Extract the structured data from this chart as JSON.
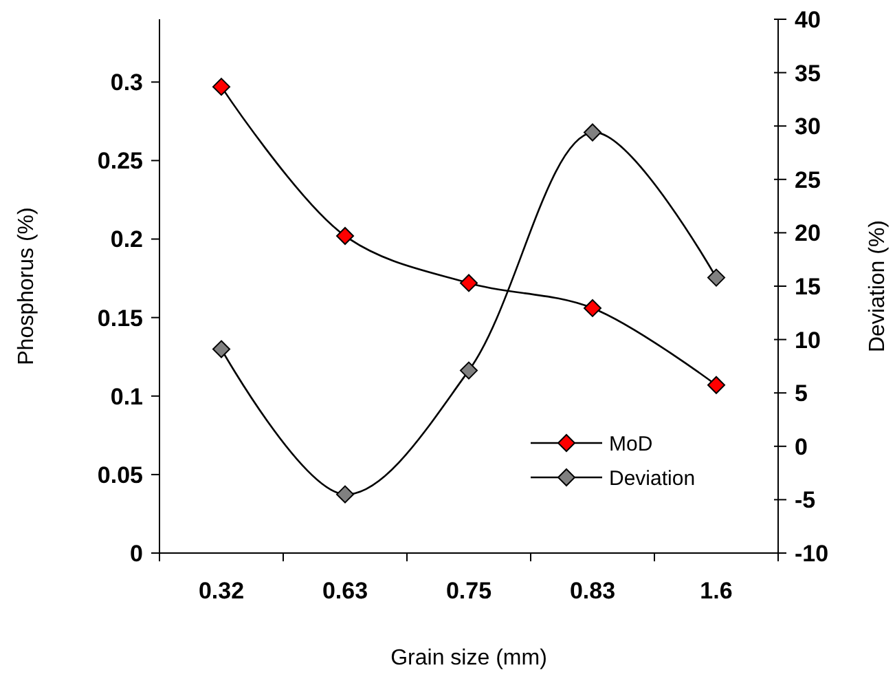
{
  "chart_data": {
    "type": "line",
    "xlabel": "Grain size (mm)",
    "ylabel": "Phosphorus (%)",
    "y2label": "Deviation (%)",
    "categories": [
      "0.32",
      "0.63",
      "0.75",
      "0.83",
      "1.6"
    ],
    "series": [
      {
        "name": "MoD",
        "color": "#ff0000",
        "values": [
          0.297,
          0.202,
          0.172,
          0.156,
          0.107
        ]
      },
      {
        "name": "Deviation",
        "color": "#808080",
        "axis": "y2",
        "values": [
          9.1,
          -4.5,
          7.1,
          29.4,
          15.8
        ]
      }
    ],
    "ylim": [
      0,
      0.34
    ],
    "yticks": [
      0,
      0.05,
      0.1,
      0.15,
      0.2,
      0.25,
      0.3
    ],
    "y2lim": [
      -10,
      40
    ],
    "y2ticks": [
      -10,
      -5,
      0,
      5,
      10,
      15,
      20,
      25,
      30,
      35,
      40
    ],
    "marker": "diamond",
    "legend": "bottom right",
    "grid": false
  }
}
